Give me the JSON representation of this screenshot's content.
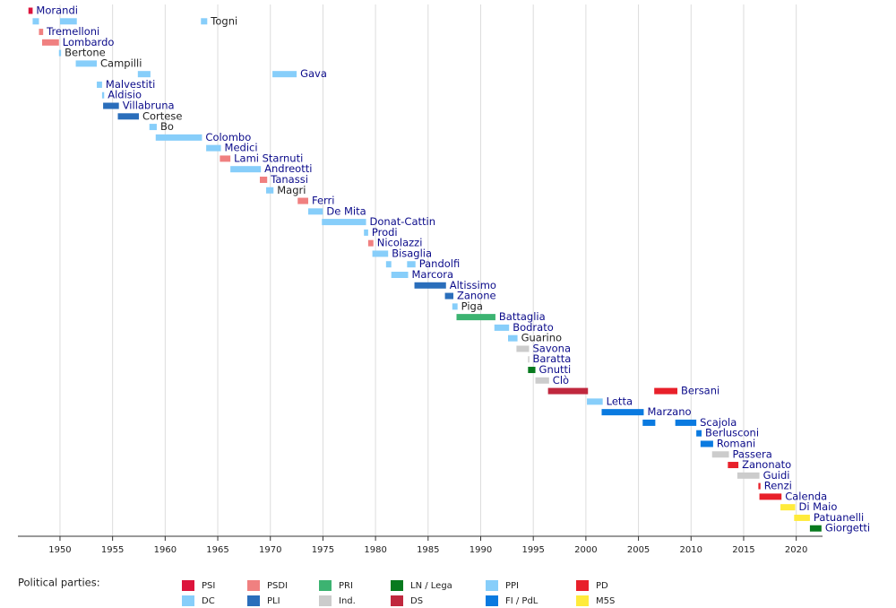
{
  "chart_data": {
    "type": "timeline",
    "xlim": [
      1946,
      2022.5
    ],
    "xticks": [
      1950,
      1955,
      1960,
      1965,
      1970,
      1975,
      1980,
      1985,
      1990,
      1995,
      2000,
      2005,
      2010,
      2015,
      2020
    ],
    "grid": true,
    "legend_title": "Political parties:",
    "parties": [
      {
        "name": "PSI",
        "color": "#dc143c"
      },
      {
        "name": "DC",
        "color": "#87cefa"
      },
      {
        "name": "PSDI",
        "color": "#f08080"
      },
      {
        "name": "PLI",
        "color": "#2a6ebb"
      },
      {
        "name": "PRI",
        "color": "#3cb371"
      },
      {
        "name": "Ind.",
        "color": "#cccccc"
      },
      {
        "name": "LN / Lega",
        "color": "#087a1e"
      },
      {
        "name": "DS",
        "color": "#c0283e"
      },
      {
        "name": "PPI",
        "color": "#87cefa"
      },
      {
        "name": "FI / PdL",
        "color": "#0a7ae0"
      },
      {
        "name": "PD",
        "color": "#e8202a"
      },
      {
        "name": "M5S",
        "color": "#ffeb3b"
      }
    ],
    "rows": [
      {
        "name": "Morandi",
        "label_color": "#0b0b8a",
        "bars": [
          {
            "party": "PSI",
            "start": 1947.0,
            "end": 1947.4
          }
        ]
      },
      {
        "name": "Togni",
        "label_color": "#222222",
        "bars": [
          {
            "party": "DC",
            "start": 1947.4,
            "end": 1948.0
          },
          {
            "party": "DC",
            "start": 1950.0,
            "end": 1951.6
          },
          {
            "party": "DC",
            "start": 1963.4,
            "end": 1964.0
          }
        ]
      },
      {
        "name": "Tremelloni",
        "label_color": "#0b0b8a",
        "bars": [
          {
            "party": "PSDI",
            "start": 1948.0,
            "end": 1948.4
          }
        ]
      },
      {
        "name": "Lombardo",
        "label_color": "#0b0b8a",
        "bars": [
          {
            "party": "PSDI",
            "start": 1948.3,
            "end": 1949.9
          }
        ]
      },
      {
        "name": "Bertone",
        "label_color": "#222222",
        "bars": [
          {
            "party": "DC",
            "start": 1949.9,
            "end": 1950.1
          }
        ]
      },
      {
        "name": "Campilli",
        "label_color": "#222222",
        "bars": [
          {
            "party": "DC",
            "start": 1951.5,
            "end": 1953.5
          }
        ]
      },
      {
        "name": "Gava",
        "label_color": "#0b0b8a",
        "bars": [
          {
            "party": "DC",
            "start": 1957.4,
            "end": 1958.6
          },
          {
            "party": "DC",
            "start": 1970.2,
            "end": 1972.5
          }
        ]
      },
      {
        "name": "Malvestiti",
        "label_color": "#0b0b8a",
        "bars": [
          {
            "party": "DC",
            "start": 1953.5,
            "end": 1954.0
          }
        ]
      },
      {
        "name": "Aldisio",
        "label_color": "#0b0b8a",
        "bars": [
          {
            "party": "DC",
            "start": 1954.0,
            "end": 1954.2
          }
        ]
      },
      {
        "name": "Villabruna",
        "label_color": "#0b0b8a",
        "bars": [
          {
            "party": "PLI",
            "start": 1954.1,
            "end": 1955.6
          }
        ]
      },
      {
        "name": "Cortese",
        "label_color": "#222222",
        "bars": [
          {
            "party": "PLI",
            "start": 1955.5,
            "end": 1957.5
          }
        ]
      },
      {
        "name": "Bo",
        "label_color": "#222222",
        "bars": [
          {
            "party": "DC",
            "start": 1958.5,
            "end": 1959.2
          }
        ]
      },
      {
        "name": "Colombo",
        "label_color": "#0b0b8a",
        "bars": [
          {
            "party": "DC",
            "start": 1959.1,
            "end": 1963.5
          }
        ]
      },
      {
        "name": "Medici",
        "label_color": "#0b0b8a",
        "bars": [
          {
            "party": "DC",
            "start": 1963.9,
            "end": 1965.3
          }
        ]
      },
      {
        "name": "Lami Starnuti",
        "label_color": "#0b0b8a",
        "bars": [
          {
            "party": "PSDI",
            "start": 1965.2,
            "end": 1966.2
          }
        ]
      },
      {
        "name": "Andreotti",
        "label_color": "#0b0b8a",
        "bars": [
          {
            "party": "DC",
            "start": 1966.2,
            "end": 1969.1
          }
        ]
      },
      {
        "name": "Tanassi",
        "label_color": "#0b0b8a",
        "bars": [
          {
            "party": "PSDI",
            "start": 1969.0,
            "end": 1969.7
          }
        ]
      },
      {
        "name": "Magri",
        "label_color": "#222222",
        "bars": [
          {
            "party": "DC",
            "start": 1969.6,
            "end": 1970.3
          }
        ]
      },
      {
        "name": "Ferri",
        "label_color": "#0b0b8a",
        "bars": [
          {
            "party": "PSDI",
            "start": 1972.6,
            "end": 1973.6
          }
        ]
      },
      {
        "name": "De Mita",
        "label_color": "#0b0b8a",
        "bars": [
          {
            "party": "DC",
            "start": 1973.6,
            "end": 1975.0
          }
        ]
      },
      {
        "name": "Donat-Cattin",
        "label_color": "#0b0b8a",
        "bars": [
          {
            "party": "DC",
            "start": 1974.9,
            "end": 1979.1
          }
        ]
      },
      {
        "name": "Prodi",
        "label_color": "#0b0b8a",
        "bars": [
          {
            "party": "DC",
            "start": 1978.9,
            "end": 1979.3
          }
        ]
      },
      {
        "name": "Nicolazzi",
        "label_color": "#0b0b8a",
        "bars": [
          {
            "party": "PSDI",
            "start": 1979.3,
            "end": 1979.8
          }
        ]
      },
      {
        "name": "Bisaglia",
        "label_color": "#0b0b8a",
        "bars": [
          {
            "party": "DC",
            "start": 1979.7,
            "end": 1981.2
          }
        ]
      },
      {
        "name": "Pandolfi",
        "label_color": "#0b0b8a",
        "bars": [
          {
            "party": "DC",
            "start": 1981.0,
            "end": 1981.5
          },
          {
            "party": "DC",
            "start": 1983.0,
            "end": 1983.8
          }
        ]
      },
      {
        "name": "Marcora",
        "label_color": "#0b0b8a",
        "bars": [
          {
            "party": "DC",
            "start": 1981.5,
            "end": 1983.1
          }
        ]
      },
      {
        "name": "Altissimo",
        "label_color": "#0b0b8a",
        "bars": [
          {
            "party": "PLI",
            "start": 1983.7,
            "end": 1986.7
          }
        ]
      },
      {
        "name": "Zanone",
        "label_color": "#0b0b8a",
        "bars": [
          {
            "party": "PLI",
            "start": 1986.6,
            "end": 1987.4
          }
        ]
      },
      {
        "name": "Piga",
        "label_color": "#222222",
        "bars": [
          {
            "party": "DC",
            "start": 1987.3,
            "end": 1987.8
          }
        ]
      },
      {
        "name": "Battaglia",
        "label_color": "#0b0b8a",
        "bars": [
          {
            "party": "PRI",
            "start": 1987.7,
            "end": 1991.4
          }
        ]
      },
      {
        "name": "Bodrato",
        "label_color": "#0b0b8a",
        "bars": [
          {
            "party": "DC",
            "start": 1991.3,
            "end": 1992.7
          }
        ]
      },
      {
        "name": "Guarino",
        "label_color": "#222222",
        "bars": [
          {
            "party": "DC",
            "start": 1992.6,
            "end": 1993.5
          }
        ]
      },
      {
        "name": "Savona",
        "label_color": "#0b0b8a",
        "bars": [
          {
            "party": "Ind.",
            "start": 1993.4,
            "end": 1994.6
          }
        ]
      },
      {
        "name": "Baratta",
        "label_color": "#0b0b8a",
        "bars": [
          {
            "party": "Ind.",
            "start": 1994.5,
            "end": 1994.6
          }
        ]
      },
      {
        "name": "Gnutti",
        "label_color": "#0b0b8a",
        "bars": [
          {
            "party": "LN / Lega",
            "start": 1994.5,
            "end": 1995.2
          }
        ]
      },
      {
        "name": "Clò",
        "label_color": "#0b0b8a",
        "bars": [
          {
            "party": "Ind.",
            "start": 1995.2,
            "end": 1996.5
          }
        ]
      },
      {
        "name": "Bersani",
        "label_color": "#0b0b8a",
        "bars": [
          {
            "party": "DS",
            "start": 1996.4,
            "end": 2000.2
          },
          {
            "party": "PD",
            "start": 2006.5,
            "end": 2008.7
          }
        ]
      },
      {
        "name": "Letta",
        "label_color": "#0b0b8a",
        "bars": [
          {
            "party": "PPI",
            "start": 2000.1,
            "end": 2001.6
          }
        ]
      },
      {
        "name": "Marzano",
        "label_color": "#0b0b8a",
        "bars": [
          {
            "party": "FI / PdL",
            "start": 2001.5,
            "end": 2005.5
          }
        ]
      },
      {
        "name": "Scajola",
        "label_color": "#0b0b8a",
        "bars": [
          {
            "party": "FI / PdL",
            "start": 2005.4,
            "end": 2006.6
          },
          {
            "party": "FI / PdL",
            "start": 2008.5,
            "end": 2010.5
          }
        ]
      },
      {
        "name": "Berlusconi",
        "label_color": "#0b0b8a",
        "bars": [
          {
            "party": "FI / PdL",
            "start": 2010.5,
            "end": 2011.0
          }
        ]
      },
      {
        "name": "Romani",
        "label_color": "#0b0b8a",
        "bars": [
          {
            "party": "FI / PdL",
            "start": 2010.9,
            "end": 2012.1
          }
        ]
      },
      {
        "name": "Passera",
        "label_color": "#0b0b8a",
        "bars": [
          {
            "party": "Ind.",
            "start": 2012.0,
            "end": 2013.6
          }
        ]
      },
      {
        "name": "Zanonato",
        "label_color": "#0b0b8a",
        "bars": [
          {
            "party": "PD",
            "start": 2013.5,
            "end": 2014.5
          }
        ]
      },
      {
        "name": "Guidi",
        "label_color": "#0b0b8a",
        "bars": [
          {
            "party": "Ind.",
            "start": 2014.4,
            "end": 2016.5
          }
        ]
      },
      {
        "name": "Renzi",
        "label_color": "#0b0b8a",
        "bars": [
          {
            "party": "PD",
            "start": 2016.4,
            "end": 2016.6
          }
        ]
      },
      {
        "name": "Calenda",
        "label_color": "#0b0b8a",
        "bars": [
          {
            "party": "PD",
            "start": 2016.5,
            "end": 2018.6
          }
        ]
      },
      {
        "name": "Di Maio",
        "label_color": "#0b0b8a",
        "bars": [
          {
            "party": "M5S",
            "start": 2018.5,
            "end": 2019.9
          }
        ]
      },
      {
        "name": "Patuanelli",
        "label_color": "#0b0b8a",
        "bars": [
          {
            "party": "M5S",
            "start": 2019.8,
            "end": 2021.3
          }
        ]
      },
      {
        "name": "Giorgetti",
        "label_color": "#0b0b8a",
        "bars": [
          {
            "party": "LN / Lega",
            "start": 2021.3,
            "end": 2022.4
          }
        ]
      }
    ]
  }
}
